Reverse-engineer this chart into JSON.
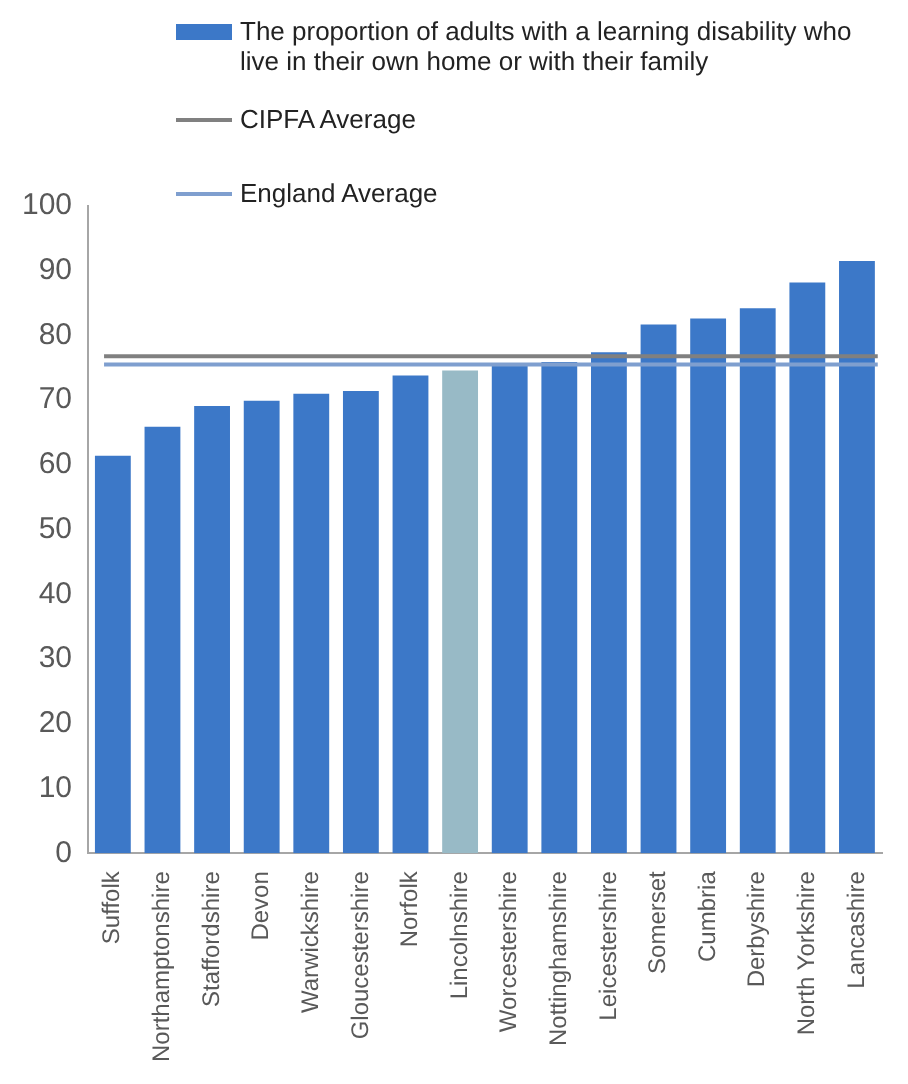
{
  "chart_data": {
    "type": "bar",
    "categories": [
      "Suffolk",
      "Northamptonshire",
      "Staffordshire",
      "Devon",
      "Warwickshire",
      "Gloucestershire",
      "Norfolk",
      "Lincolnshire",
      "Worcestershire",
      "Nottinghamshire",
      "Leicestershire",
      "Somerset",
      "Cumbria",
      "Derbyshire",
      "North Yorkshire",
      "Lancashire"
    ],
    "series": [
      {
        "name": "The proportion of adults with a learning disability who live in their own home or with their family",
        "color": "#3c78c8",
        "colors": [
          "#3c78c8",
          "#3c78c8",
          "#3c78c8",
          "#3c78c8",
          "#3c78c8",
          "#3c78c8",
          "#3c78c8",
          "#98bac6",
          "#3c78c8",
          "#3c78c8",
          "#3c78c8",
          "#3c78c8",
          "#3c78c8",
          "#3c78c8",
          "#3c78c8",
          "#3c78c8"
        ],
        "values": [
          61.4,
          65.9,
          69.1,
          69.9,
          71.0,
          71.4,
          73.8,
          74.6,
          75.5,
          75.9,
          77.4,
          81.7,
          82.6,
          84.2,
          88.2,
          91.5
        ]
      }
    ],
    "ref_lines": [
      {
        "axis": "y",
        "value": 76.8,
        "label": "CIPFA Average",
        "color": "#808080"
      },
      {
        "axis": "y",
        "value": 75.5,
        "label": "England Average",
        "color": "#7f9fcf"
      }
    ],
    "ylim": [
      0,
      100
    ],
    "yticks": [
      0,
      10,
      20,
      30,
      40,
      50,
      60,
      70,
      80,
      90,
      100
    ],
    "grid": false,
    "legend": "top left"
  }
}
